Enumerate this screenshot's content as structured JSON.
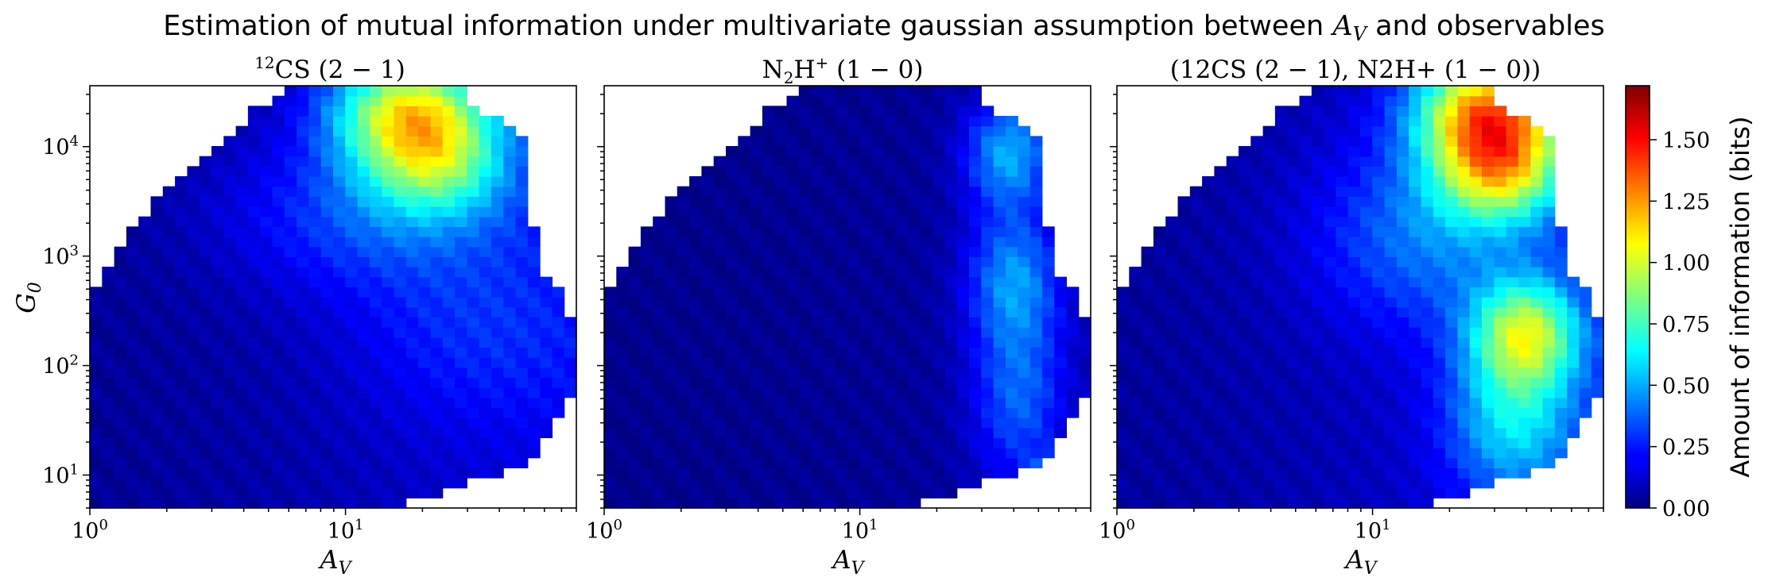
{
  "chart_data": {
    "type": "heatmap",
    "title": "Estimation of mutual information under multivariate gaussian assumption between A_V and observables",
    "title_parts": {
      "prefix": "Estimation of mutual information under multivariate gaussian assumption between ",
      "symbol": "A",
      "symbol_sub": "V",
      "suffix": " and observables"
    },
    "colormap": "jet",
    "colorbar": {
      "label": "Amount of information (bits)",
      "range": [
        0,
        1.72
      ],
      "ticks": [
        0.0,
        0.25,
        0.5,
        0.75,
        1.0,
        1.25,
        1.5
      ],
      "tick_labels": [
        "0.00",
        "0.25",
        "0.50",
        "0.75",
        "1.00",
        "1.25",
        "1.50"
      ]
    },
    "x_axis": {
      "label": "A_V",
      "label_main": "A",
      "label_sub": "V",
      "scale": "log",
      "range": [
        1,
        80
      ],
      "major_ticks": [
        1,
        10
      ],
      "major_labels": [
        "10",
        "10"
      ],
      "major_exponents": [
        "0",
        "1"
      ]
    },
    "y_axis": {
      "label": "G_0",
      "label_main": "G",
      "label_sub": "0",
      "scale": "log",
      "range": [
        5,
        36000
      ],
      "major_ticks": [
        10,
        100,
        1000,
        10000
      ],
      "major_labels": [
        "10",
        "10",
        "10",
        "10"
      ],
      "major_exponents": [
        "1",
        "2",
        "3",
        "4"
      ]
    },
    "domain_boundary": {
      "description": "Right/upper edge of populated (A_V, G_0) region: max A_V per log10(G_0) row",
      "log10_G0": [
        0.7,
        1.0,
        1.3,
        1.7,
        2.0,
        2.3,
        2.6,
        2.9,
        3.2,
        3.5,
        3.8,
        4.1,
        4.4
      ],
      "max_AV": [
        22,
        45,
        60,
        75,
        80,
        80,
        72,
        58,
        55,
        52,
        52,
        50,
        30
      ],
      "lower_edge_log10_G0": [
        2.7,
        2.75,
        2.9,
        3.2,
        3.35,
        3.5,
        3.6,
        3.7,
        3.8,
        3.95,
        4.05,
        4.15,
        4.25,
        4.35,
        4.45,
        4.56
      ],
      "lower_edge_AV": [
        1.0,
        1.1,
        1.2,
        1.4,
        1.6,
        1.8,
        2.0,
        2.3,
        2.6,
        2.9,
        3.2,
        3.6,
        4.0,
        4.5,
        5.5,
        6.2
      ]
    },
    "panels": [
      {
        "title": "12CS (2 − 1)",
        "title_sup": "12",
        "title_main": "CS",
        "title_rest": " (2 − 1)",
        "hotspots": [
          {
            "log_av": 1.25,
            "log_g0": 4.35,
            "value": 0.85,
            "sigma_x": 0.22,
            "sigma_y": 0.35
          },
          {
            "log_av": 1.35,
            "log_g0": 3.85,
            "value": 0.55,
            "sigma_x": 0.2,
            "sigma_y": 0.35
          },
          {
            "log_av": 1.1,
            "log_g0": 3.4,
            "value": 0.25,
            "sigma_x": 0.4,
            "sigma_y": 0.5
          },
          {
            "log_av": 1.5,
            "log_g0": 2.3,
            "value": 0.15,
            "sigma_x": 0.35,
            "sigma_y": 0.6
          }
        ],
        "baseline_left": 0.04,
        "baseline_right": 0.17
      },
      {
        "title": "N2H+ (1 − 0)",
        "title_main": "N",
        "title_sub": "2",
        "title_main2": "H",
        "title_sup": "+",
        "title_rest": " (1 − 0)",
        "hotspots": [
          {
            "log_av": 1.58,
            "log_g0": 3.95,
            "value": 0.45,
            "sigma_x": 0.12,
            "sigma_y": 0.35
          },
          {
            "log_av": 1.6,
            "log_g0": 2.8,
            "value": 0.4,
            "sigma_x": 0.13,
            "sigma_y": 0.45
          },
          {
            "log_av": 1.62,
            "log_g0": 1.7,
            "value": 0.32,
            "sigma_x": 0.13,
            "sigma_y": 0.55
          },
          {
            "log_av": 1.75,
            "log_g0": 0.95,
            "value": 0.45,
            "sigma_x": 0.06,
            "sigma_y": 0.15
          }
        ],
        "baseline_left": 0.02,
        "baseline_right": 0.06
      },
      {
        "title": "(12CS (2 − 1), N2H+ (1 − 0))",
        "hotspots": [
          {
            "log_av": 1.45,
            "log_g0": 4.35,
            "value": 1.0,
            "sigma_x": 0.2,
            "sigma_y": 0.35
          },
          {
            "log_av": 1.5,
            "log_g0": 3.8,
            "value": 0.8,
            "sigma_x": 0.18,
            "sigma_y": 0.35
          },
          {
            "log_av": 1.6,
            "log_g0": 2.3,
            "value": 0.75,
            "sigma_x": 0.15,
            "sigma_y": 0.35
          },
          {
            "log_av": 1.55,
            "log_g0": 1.5,
            "value": 0.45,
            "sigma_x": 0.18,
            "sigma_y": 0.5
          },
          {
            "log_av": 1.2,
            "log_g0": 3.2,
            "value": 0.3,
            "sigma_x": 0.3,
            "sigma_y": 0.6
          }
        ],
        "baseline_left": 0.05,
        "baseline_right": 0.2
      }
    ]
  }
}
